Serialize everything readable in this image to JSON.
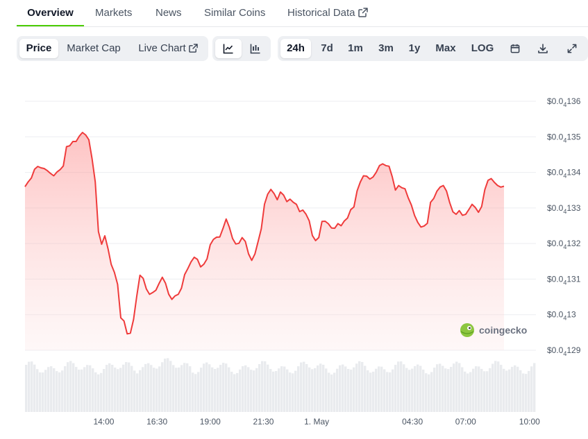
{
  "top_tabs": [
    {
      "label": "Overview",
      "active": true
    },
    {
      "label": "Markets"
    },
    {
      "label": "News"
    },
    {
      "label": "Similar Coins"
    },
    {
      "label": "Historical Data",
      "external": true
    }
  ],
  "toolbar": {
    "metric_tabs": [
      {
        "label": "Price",
        "active": true
      },
      {
        "label": "Market Cap"
      },
      {
        "label": "Live Chart",
        "external": true
      }
    ],
    "chart_style": [
      {
        "icon": "line-chart-icon",
        "active": true
      },
      {
        "icon": "candlestick-chart-icon"
      }
    ],
    "ranges": [
      {
        "label": "24h",
        "active": true
      },
      {
        "label": "7d"
      },
      {
        "label": "1m"
      },
      {
        "label": "3m"
      },
      {
        "label": "1y"
      },
      {
        "label": "Max"
      },
      {
        "label": "LOG"
      }
    ],
    "actions": [
      "calendar-icon",
      "download-icon",
      "fullscreen-icon"
    ]
  },
  "watermark": "coingecko",
  "colors": {
    "line": "#ef3b3b",
    "fill": "#fde2e2",
    "volume": "#e5e7eb",
    "accent": "#4bcc00"
  },
  "chart_data": {
    "type": "line",
    "y_ticks": [
      {
        "main": "$0.0",
        "sub": "4",
        "rest": "129",
        "value": 1.29e-05
      },
      {
        "main": "$0.0",
        "sub": "4",
        "rest": "13",
        "value": 1.3e-05
      },
      {
        "main": "$0.0",
        "sub": "4",
        "rest": "131",
        "value": 1.31e-05
      },
      {
        "main": "$0.0",
        "sub": "4",
        "rest": "132",
        "value": 1.32e-05
      },
      {
        "main": "$0.0",
        "sub": "4",
        "rest": "133",
        "value": 1.33e-05
      },
      {
        "main": "$0.0",
        "sub": "4",
        "rest": "134",
        "value": 1.34e-05
      },
      {
        "main": "$0.0",
        "sub": "4",
        "rest": "135",
        "value": 1.35e-05
      },
      {
        "main": "$0.0",
        "sub": "4",
        "rest": "136",
        "value": 1.36e-05
      }
    ],
    "ylim": [
      1.29e-05,
      1.36e-05
    ],
    "x_ticks": [
      {
        "label": "14:00",
        "t": 14.0
      },
      {
        "label": "16:30",
        "t": 16.5
      },
      {
        "label": "19:00",
        "t": 19.0
      },
      {
        "label": "21:30",
        "t": 21.5
      },
      {
        "label": "1. May",
        "t": 24.0
      },
      {
        "label": "04:30",
        "t": 28.5
      },
      {
        "label": "07:00",
        "t": 31.0
      },
      {
        "label": "10:00",
        "t": 34.0
      }
    ],
    "xlim": [
      10.3,
      34.3
    ],
    "grid": true,
    "series": [
      {
        "values": [
          [
            10.3,
            1.33598
          ],
          [
            10.45,
            1.33735
          ],
          [
            10.6,
            1.33843
          ],
          [
            10.75,
            1.34089
          ],
          [
            10.9,
            1.34167
          ],
          [
            11.05,
            1.34128
          ],
          [
            11.2,
            1.34108
          ],
          [
            11.35,
            1.34048
          ],
          [
            11.5,
            1.33971
          ],
          [
            11.65,
            1.33904
          ],
          [
            11.8,
            1.3401
          ],
          [
            11.95,
            1.34078
          ],
          [
            12.1,
            1.3418
          ],
          [
            12.25,
            1.34722
          ],
          [
            12.4,
            1.34748
          ],
          [
            12.55,
            1.34869
          ],
          [
            12.7,
            1.34869
          ],
          [
            12.85,
            1.35018
          ],
          [
            13.0,
            1.35122
          ],
          [
            13.15,
            1.35053
          ],
          [
            13.3,
            1.34918
          ],
          [
            13.45,
            1.34386
          ],
          [
            13.6,
            1.33737
          ],
          [
            13.75,
            1.32337
          ],
          [
            13.9,
            1.31982
          ],
          [
            14.05,
            1.32217
          ],
          [
            14.2,
            1.31854
          ],
          [
            14.35,
            1.31412
          ],
          [
            14.5,
            1.31188
          ],
          [
            14.65,
            1.30853
          ],
          [
            14.8,
            1.2991
          ],
          [
            14.95,
            1.29823
          ],
          [
            15.1,
            1.29461
          ],
          [
            15.25,
            1.2948
          ],
          [
            15.4,
            1.29868
          ],
          [
            15.55,
            1.30521
          ],
          [
            15.7,
            1.31108
          ],
          [
            15.85,
            1.31022
          ],
          [
            16.0,
            1.30724
          ],
          [
            16.15,
            1.30571
          ],
          [
            16.3,
            1.30622
          ],
          [
            16.45,
            1.30689
          ],
          [
            16.6,
            1.3088
          ],
          [
            16.75,
            1.31051
          ],
          [
            16.9,
            1.30883
          ],
          [
            17.05,
            1.30576
          ],
          [
            17.2,
            1.30429
          ],
          [
            17.35,
            1.30529
          ],
          [
            17.5,
            1.30571
          ],
          [
            17.65,
            1.30746
          ],
          [
            17.8,
            1.31128
          ],
          [
            17.95,
            1.31296
          ],
          [
            18.1,
            1.31484
          ],
          [
            18.25,
            1.31615
          ],
          [
            18.4,
            1.31554
          ],
          [
            18.55,
            1.31344
          ],
          [
            18.7,
            1.31418
          ],
          [
            18.85,
            1.31566
          ],
          [
            19.0,
            1.31964
          ],
          [
            19.15,
            1.32115
          ],
          [
            19.3,
            1.32178
          ],
          [
            19.45,
            1.32185
          ],
          [
            19.6,
            1.32423
          ],
          [
            19.75,
            1.3269
          ],
          [
            19.9,
            1.32457
          ],
          [
            20.05,
            1.32142
          ],
          [
            20.2,
            1.31988
          ],
          [
            20.35,
            1.32007
          ],
          [
            20.5,
            1.32166
          ],
          [
            20.65,
            1.32059
          ],
          [
            20.8,
            1.3171
          ],
          [
            20.95,
            1.31527
          ],
          [
            21.1,
            1.31707
          ],
          [
            21.25,
            1.32057
          ],
          [
            21.4,
            1.32417
          ],
          [
            21.55,
            1.33105
          ],
          [
            21.7,
            1.33387
          ],
          [
            21.85,
            1.33522
          ],
          [
            22.0,
            1.33404
          ],
          [
            22.15,
            1.33232
          ],
          [
            22.3,
            1.33448
          ],
          [
            22.45,
            1.3336
          ],
          [
            22.6,
            1.33179
          ],
          [
            22.75,
            1.33246
          ],
          [
            22.9,
            1.33161
          ],
          [
            23.05,
            1.33103
          ],
          [
            23.2,
            1.32898
          ],
          [
            23.35,
            1.3294
          ],
          [
            23.5,
            1.32824
          ],
          [
            23.65,
            1.3264
          ],
          [
            23.8,
            1.32224
          ],
          [
            23.95,
            1.32083
          ],
          [
            24.1,
            1.32169
          ],
          [
            24.25,
            1.3262
          ],
          [
            24.4,
            1.32626
          ],
          [
            24.55,
            1.32556
          ],
          [
            24.7,
            1.32436
          ],
          [
            24.85,
            1.32429
          ],
          [
            25.0,
            1.3256
          ],
          [
            25.15,
            1.325
          ],
          [
            25.3,
            1.32634
          ],
          [
            25.45,
            1.32717
          ],
          [
            25.6,
            1.32952
          ],
          [
            25.75,
            1.33029
          ],
          [
            25.9,
            1.3348
          ],
          [
            26.05,
            1.33729
          ],
          [
            26.2,
            1.33904
          ],
          [
            26.35,
            1.33895
          ],
          [
            26.5,
            1.33812
          ],
          [
            26.65,
            1.33871
          ],
          [
            26.8,
            1.34006
          ],
          [
            26.95,
            1.34191
          ],
          [
            27.1,
            1.34239
          ],
          [
            27.25,
            1.3419
          ],
          [
            27.4,
            1.34173
          ],
          [
            27.55,
            1.33878
          ],
          [
            27.7,
            1.33503
          ],
          [
            27.85,
            1.33629
          ],
          [
            28.0,
            1.33569
          ],
          [
            28.15,
            1.33539
          ],
          [
            28.3,
            1.33286
          ],
          [
            28.45,
            1.33082
          ],
          [
            28.6,
            1.32789
          ],
          [
            28.75,
            1.32594
          ],
          [
            28.9,
            1.32463
          ],
          [
            29.05,
            1.32494
          ],
          [
            29.2,
            1.32569
          ],
          [
            29.35,
            1.3316
          ],
          [
            29.5,
            1.33269
          ],
          [
            29.65,
            1.33473
          ],
          [
            29.8,
            1.33588
          ],
          [
            29.95,
            1.3363
          ],
          [
            30.1,
            1.33474
          ],
          [
            30.25,
            1.3315
          ],
          [
            30.4,
            1.32892
          ],
          [
            30.55,
            1.32821
          ],
          [
            30.7,
            1.32925
          ],
          [
            30.85,
            1.32794
          ],
          [
            31.0,
            1.32819
          ],
          [
            31.15,
            1.32956
          ],
          [
            31.3,
            1.33102
          ],
          [
            31.45,
            1.33015
          ],
          [
            31.6,
            1.32879
          ],
          [
            31.75,
            1.3304
          ],
          [
            31.9,
            1.33515
          ],
          [
            32.05,
            1.33777
          ],
          [
            32.2,
            1.33826
          ],
          [
            32.35,
            1.33718
          ],
          [
            32.5,
            1.3363
          ],
          [
            32.65,
            1.33586
          ],
          [
            32.8,
            1.33611
          ]
        ]
      }
    ]
  }
}
